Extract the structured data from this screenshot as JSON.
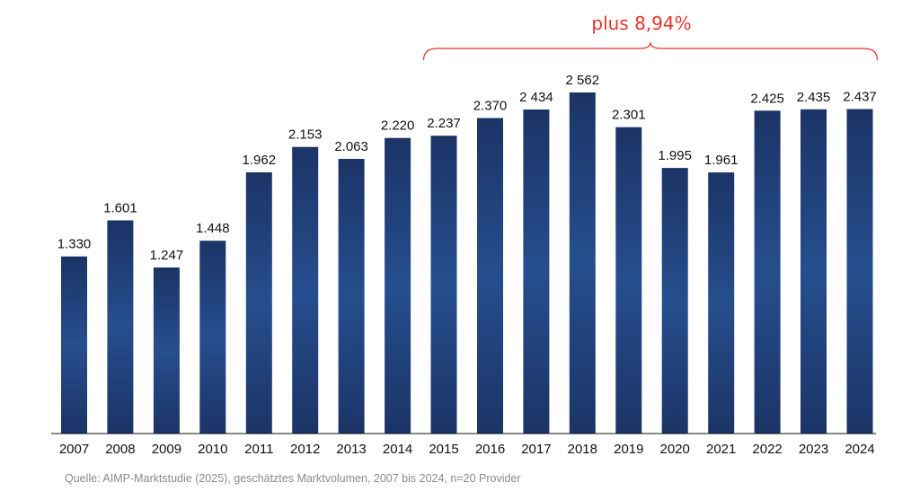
{
  "chart_data": {
    "type": "bar",
    "title": "",
    "xlabel": "",
    "ylabel": "",
    "ylim": [
      0,
      2600
    ],
    "grid": false,
    "legend": "none",
    "categories": [
      "2007",
      "2008",
      "2009",
      "2010",
      "2011",
      "2012",
      "2013",
      "2014",
      "2015",
      "2016",
      "2017",
      "2018",
      "2019",
      "2020",
      "2021",
      "2022",
      "2023",
      "2024"
    ],
    "values": [
      1330,
      1601,
      1247,
      1448,
      1962,
      2153,
      2063,
      2220,
      2237,
      2370,
      2434,
      2562,
      2301,
      1995,
      1961,
      2425,
      2435,
      2437
    ],
    "value_labels": [
      "1.330",
      "1.601",
      "1.247",
      "1.448",
      "1.962",
      "2.153",
      "2.063",
      "2.220",
      "2.237",
      "2.370",
      "2 434",
      "2 562",
      "2.301",
      "1.995",
      "1.961",
      "2.425",
      "2.435",
      "2.437"
    ],
    "annotation": {
      "text": "plus 8,94%",
      "from_category": "2015",
      "to_category": "2024",
      "color": "#e8332a"
    },
    "colors": {
      "bar_dark": "#1b3466",
      "bar_mid": "#264e8e",
      "axis": "#111111",
      "brace": "#e8332a"
    }
  },
  "source_note": "Quelle: AIMP-Marktstudie (2025), geschätztes Marktvolumen, 2007 bis 2024, n=20 Provider"
}
